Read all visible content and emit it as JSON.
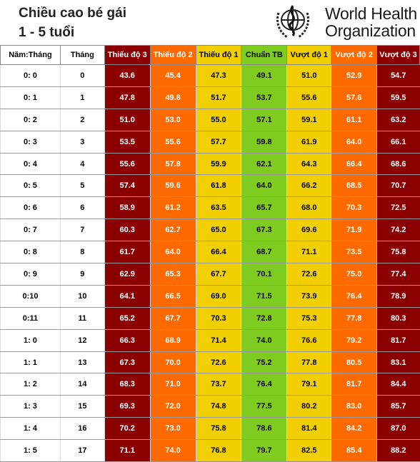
{
  "title": {
    "line1": "Chiều cao bé gái",
    "line2": "1 - 5 tuổi"
  },
  "org": {
    "line1": "World Health",
    "line2": "Organization"
  },
  "colors": {
    "sev3": "#8b0000",
    "sev2": "#ff6a00",
    "sev1": "#f2cf00",
    "median": "#7fcb1f"
  },
  "columns": [
    "Năm:Tháng",
    "Tháng",
    "Thiếu độ 3",
    "Thiếu độ 2",
    "Thiếu độ 1",
    "Chuẩn TB",
    "Vượt độ 1",
    "Vượt độ 2",
    "Vượt độ 3"
  ],
  "rows": [
    [
      "0: 0",
      "0",
      "43.6",
      "45.4",
      "47.3",
      "49.1",
      "51.0",
      "52.9",
      "54.7"
    ],
    [
      "0: 1",
      "1",
      "47.8",
      "49.8",
      "51.7",
      "53.7",
      "55.6",
      "57.6",
      "59.5"
    ],
    [
      "0: 2",
      "2",
      "51.0",
      "53.0",
      "55.0",
      "57.1",
      "59.1",
      "61.1",
      "63.2"
    ],
    [
      "0: 3",
      "3",
      "53.5",
      "55.6",
      "57.7",
      "59.8",
      "61.9",
      "64.0",
      "66.1"
    ],
    [
      "0: 4",
      "4",
      "55.6",
      "57.8",
      "59.9",
      "62.1",
      "64.3",
      "66.4",
      "68.6"
    ],
    [
      "0: 5",
      "5",
      "57.4",
      "59.6",
      "61.8",
      "64.0",
      "66.2",
      "68.5",
      "70.7"
    ],
    [
      "0: 6",
      "6",
      "58.9",
      "61.2",
      "63.5",
      "65.7",
      "68.0",
      "70.3",
      "72.5"
    ],
    [
      "0: 7",
      "7",
      "60.3",
      "62.7",
      "65.0",
      "67.3",
      "69.6",
      "71.9",
      "74.2"
    ],
    [
      "0: 8",
      "8",
      "61.7",
      "64.0",
      "66.4",
      "68.7",
      "71.1",
      "73.5",
      "75.8"
    ],
    [
      "0: 9",
      "9",
      "62.9",
      "65.3",
      "67.7",
      "70.1",
      "72.6",
      "75.0",
      "77.4"
    ],
    [
      "0:10",
      "10",
      "64.1",
      "66.5",
      "69.0",
      "71.5",
      "73.9",
      "76.4",
      "78.9"
    ],
    [
      "0:11",
      "11",
      "65.2",
      "67.7",
      "70.3",
      "72.8",
      "75.3",
      "77.8",
      "80.3"
    ],
    [
      "1: 0",
      "12",
      "66.3",
      "68.9",
      "71.4",
      "74.0",
      "76.6",
      "79.2",
      "81.7"
    ],
    [
      "1: 1",
      "13",
      "67.3",
      "70.0",
      "72.6",
      "75.2",
      "77.8",
      "80.5",
      "83.1"
    ],
    [
      "1: 2",
      "14",
      "68.3",
      "71.0",
      "73.7",
      "76.4",
      "79.1",
      "81.7",
      "84.4"
    ],
    [
      "1: 3",
      "15",
      "69.3",
      "72.0",
      "74.8",
      "77.5",
      "80.2",
      "83.0",
      "85.7"
    ],
    [
      "1: 4",
      "16",
      "70.2",
      "73.0",
      "75.8",
      "78.6",
      "81.4",
      "84.2",
      "87.0"
    ],
    [
      "1: 5",
      "17",
      "71.1",
      "74.0",
      "76.8",
      "79.7",
      "82.5",
      "85.4",
      "88.2"
    ]
  ]
}
